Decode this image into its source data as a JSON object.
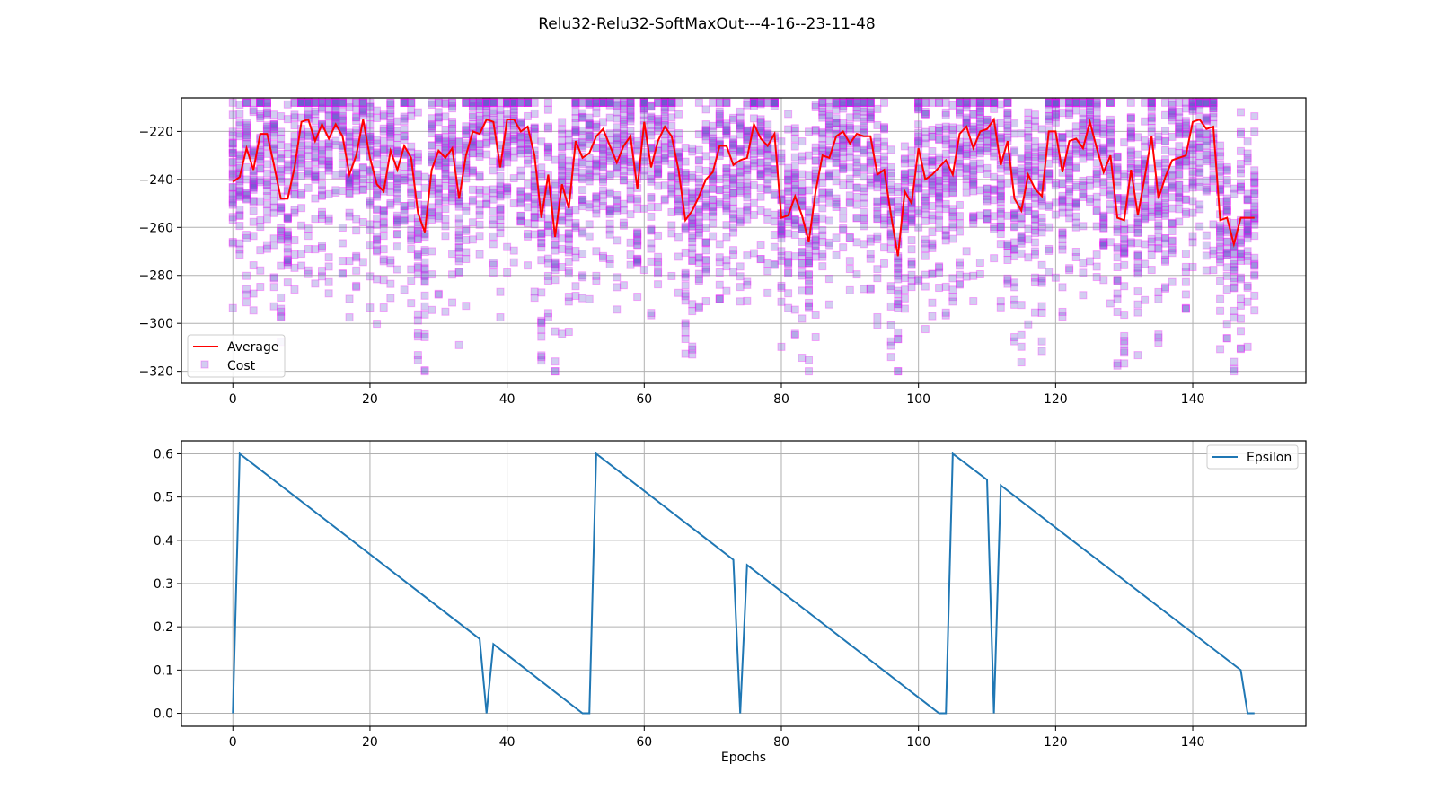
{
  "figure": {
    "title": "Relu32-Relu32-SoftMaxOut---4-16--23-11-48"
  },
  "colors": {
    "average": "#ff0000",
    "cost_face": "#6a5acd",
    "cost_edge": "#ff00ff",
    "epsilon": "#1f77b4",
    "grid": "#b0b0b0"
  },
  "chart_data": [
    {
      "type": "scatter",
      "title": "",
      "xlabel": "",
      "ylabel": "",
      "xlim": [
        -7.5,
        156.5
      ],
      "ylim": [
        -325,
        -206
      ],
      "xticks": [
        0,
        20,
        40,
        60,
        80,
        100,
        120,
        140
      ],
      "yticks": [
        -220,
        -240,
        -260,
        -280,
        -300,
        -320
      ],
      "grid": true,
      "legend": {
        "placement": "lower-left",
        "entries": [
          "Average",
          "Cost"
        ]
      },
      "series": [
        {
          "name": "Average",
          "kind": "line",
          "x": [
            0,
            1,
            2,
            3,
            4,
            5,
            6,
            7,
            8,
            9,
            10,
            11,
            12,
            13,
            14,
            15,
            16,
            17,
            18,
            19,
            20,
            21,
            22,
            23,
            24,
            25,
            26,
            27,
            28,
            29,
            30,
            31,
            32,
            33,
            34,
            35,
            36,
            37,
            38,
            39,
            40,
            41,
            42,
            43,
            44,
            45,
            46,
            47,
            48,
            49,
            50,
            51,
            52,
            53,
            54,
            55,
            56,
            57,
            58,
            59,
            60,
            61,
            62,
            63,
            64,
            65,
            66,
            67,
            68,
            69,
            70,
            71,
            72,
            73,
            74,
            75,
            76,
            77,
            78,
            79,
            80,
            81,
            82,
            83,
            84,
            85,
            86,
            87,
            88,
            89,
            90,
            91,
            92,
            93,
            94,
            95,
            96,
            97,
            98,
            99,
            100,
            101,
            102,
            103,
            104,
            105,
            106,
            107,
            108,
            109,
            110,
            111,
            112,
            113,
            114,
            115,
            116,
            117,
            118,
            119,
            120,
            121,
            122,
            123,
            124,
            125,
            126,
            127,
            128,
            129,
            130,
            131,
            132,
            133,
            134,
            135,
            136,
            137,
            138,
            139,
            140,
            141,
            142,
            143,
            144,
            145,
            146,
            147,
            148,
            149
          ],
          "y": [
            -241,
            -239,
            -227,
            -236,
            -221,
            -221,
            -234,
            -248,
            -248,
            -235,
            -216,
            -215,
            -224,
            -217,
            -223,
            -217,
            -222,
            -238,
            -230,
            -215,
            -231,
            -242,
            -245,
            -228,
            -236,
            -226,
            -231,
            -254,
            -262,
            -236,
            -228,
            -231,
            -227,
            -248,
            -230,
            -220,
            -221,
            -215,
            -216,
            -235,
            -215,
            -215,
            -220,
            -218,
            -230,
            -256,
            -238,
            -264,
            -242,
            -252,
            -224,
            -231,
            -229,
            -222,
            -219,
            -226,
            -233,
            -226,
            -222,
            -244,
            -216,
            -235,
            -224,
            -218,
            -222,
            -236,
            -257,
            -253,
            -247,
            -240,
            -237,
            -226,
            -226,
            -234,
            -232,
            -231,
            -217,
            -223,
            -226,
            -221,
            -256,
            -255,
            -247,
            -255,
            -266,
            -245,
            -230,
            -231,
            -222,
            -220,
            -225,
            -221,
            -222,
            -222,
            -238,
            -236,
            -255,
            -272,
            -245,
            -250,
            -227,
            -240,
            -238,
            -235,
            -232,
            -238,
            -221,
            -218,
            -227,
            -220,
            -219,
            -215,
            -234,
            -224,
            -248,
            -253,
            -238,
            -244,
            -247,
            -220,
            -220,
            -237,
            -224,
            -223,
            -227,
            -216,
            -227,
            -237,
            -230,
            -256,
            -257,
            -236,
            -255,
            -239,
            -222,
            -248,
            -239,
            -232,
            -231,
            -230,
            -216,
            -215,
            -219,
            -218,
            -257,
            -256,
            -267,
            -256,
            -256,
            -256
          ]
        },
        {
          "name": "Cost",
          "kind": "scatter",
          "n_per_epoch": 30,
          "min": -320,
          "max": -208
        }
      ]
    },
    {
      "type": "line",
      "title": "",
      "xlabel": "Epochs",
      "ylabel": "",
      "xlim": [
        -7.5,
        156.5
      ],
      "ylim": [
        -0.03,
        0.63
      ],
      "xticks": [
        0,
        20,
        40,
        60,
        80,
        100,
        120,
        140
      ],
      "yticks": [
        0.0,
        0.1,
        0.2,
        0.3,
        0.4,
        0.5,
        0.6
      ],
      "yticklabels": [
        "0.0",
        "0.1",
        "0.2",
        "0.3",
        "0.4",
        "0.5",
        "0.6"
      ],
      "grid": true,
      "legend": {
        "placement": "top-right",
        "entries": [
          "Epsilon"
        ]
      },
      "series": [
        {
          "name": "Epsilon",
          "x": [
            0,
            1,
            36,
            37,
            38,
            51,
            52,
            53,
            73,
            74,
            75,
            103,
            104,
            105,
            110,
            111,
            112,
            147,
            148,
            149
          ],
          "y": [
            0.0,
            0.6,
            0.172,
            0.0,
            0.16,
            0.0,
            0.0,
            0.6,
            0.355,
            0.0,
            0.343,
            0.0,
            0.0,
            0.6,
            0.54,
            0.0,
            0.527,
            0.1,
            0.0,
            0.0
          ]
        }
      ]
    }
  ]
}
